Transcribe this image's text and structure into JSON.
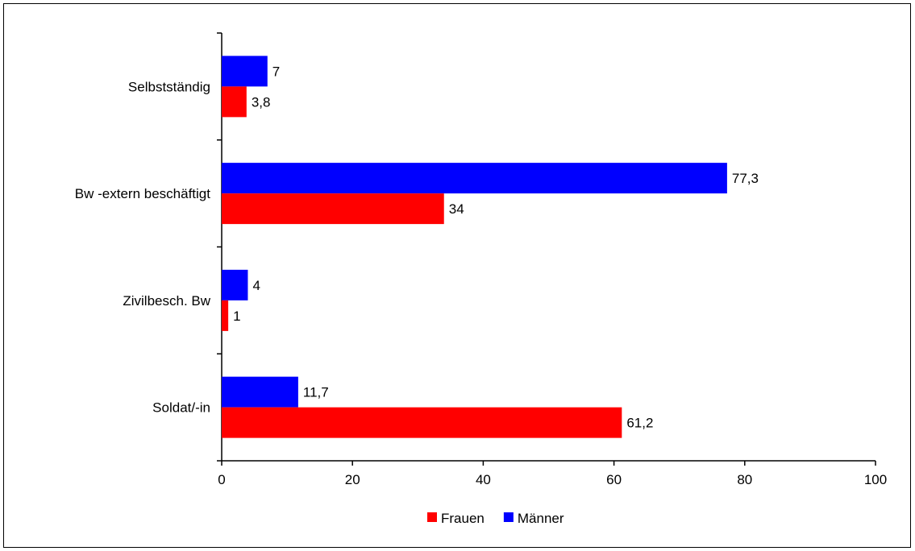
{
  "chart_data": {
    "type": "bar",
    "orientation": "horizontal",
    "categories": [
      "Selbstständig",
      "Bw -extern beschäftigt",
      "Zivilbesch. Bw",
      "Soldat/-in"
    ],
    "series": [
      {
        "name": "Männer",
        "color": "#0000ff",
        "values": [
          7,
          77.3,
          4,
          11.7
        ],
        "labels": [
          "7",
          "77,3",
          "4",
          "11,7"
        ]
      },
      {
        "name": "Frauen",
        "color": "#ff0000",
        "values": [
          3.8,
          34,
          1,
          61.2
        ],
        "labels": [
          "3,8",
          "34",
          "1",
          "61,2"
        ]
      }
    ],
    "xlim": [
      0,
      100
    ],
    "xticks": [
      0,
      20,
      40,
      60,
      80,
      100
    ],
    "xtick_labels": [
      "0",
      "20",
      "40",
      "60",
      "80",
      "100"
    ],
    "grid": false,
    "legend": {
      "position": "bottom",
      "entries": [
        {
          "name": "Frauen",
          "color": "#ff0000"
        },
        {
          "name": "Männer",
          "color": "#0000ff"
        }
      ]
    }
  }
}
